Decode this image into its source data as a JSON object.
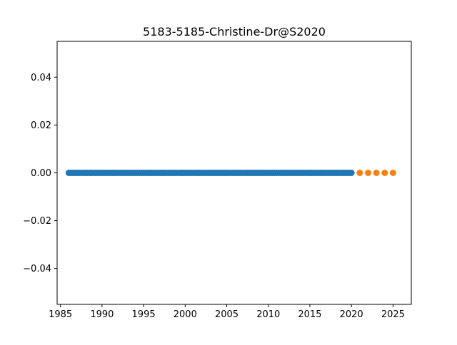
{
  "chart_data": {
    "type": "scatter",
    "title": "5183-5185-Christine-Dr@S2020",
    "xlabel": "",
    "ylabel": "",
    "xlim": [
      1984.6,
      2027.2
    ],
    "ylim": [
      -0.055,
      0.055
    ],
    "x_ticks": [
      1985,
      1990,
      1995,
      2000,
      2005,
      2010,
      2015,
      2020,
      2025
    ],
    "y_ticks": [
      0.04,
      0.02,
      0.0,
      -0.02,
      -0.04
    ],
    "x_tick_labels": [
      "1985",
      "1990",
      "1995",
      "2000",
      "2005",
      "2010",
      "2015",
      "2020",
      "2025"
    ],
    "y_tick_labels": [
      "0.04",
      "0.02",
      "0.00",
      "−0.02",
      "−0.04"
    ],
    "grid": false,
    "legend": "none",
    "series": [
      {
        "color": "#1f77b4",
        "x_start": 1986.0,
        "x_end": 2020.0,
        "x_step": 0.25,
        "y": 0.0
      },
      {
        "color": "#ff7f0e",
        "x": [
          2021,
          2022,
          2023,
          2024,
          2025
        ],
        "y": [
          0.0,
          0.0,
          0.0,
          0.0,
          0.0
        ]
      }
    ]
  }
}
